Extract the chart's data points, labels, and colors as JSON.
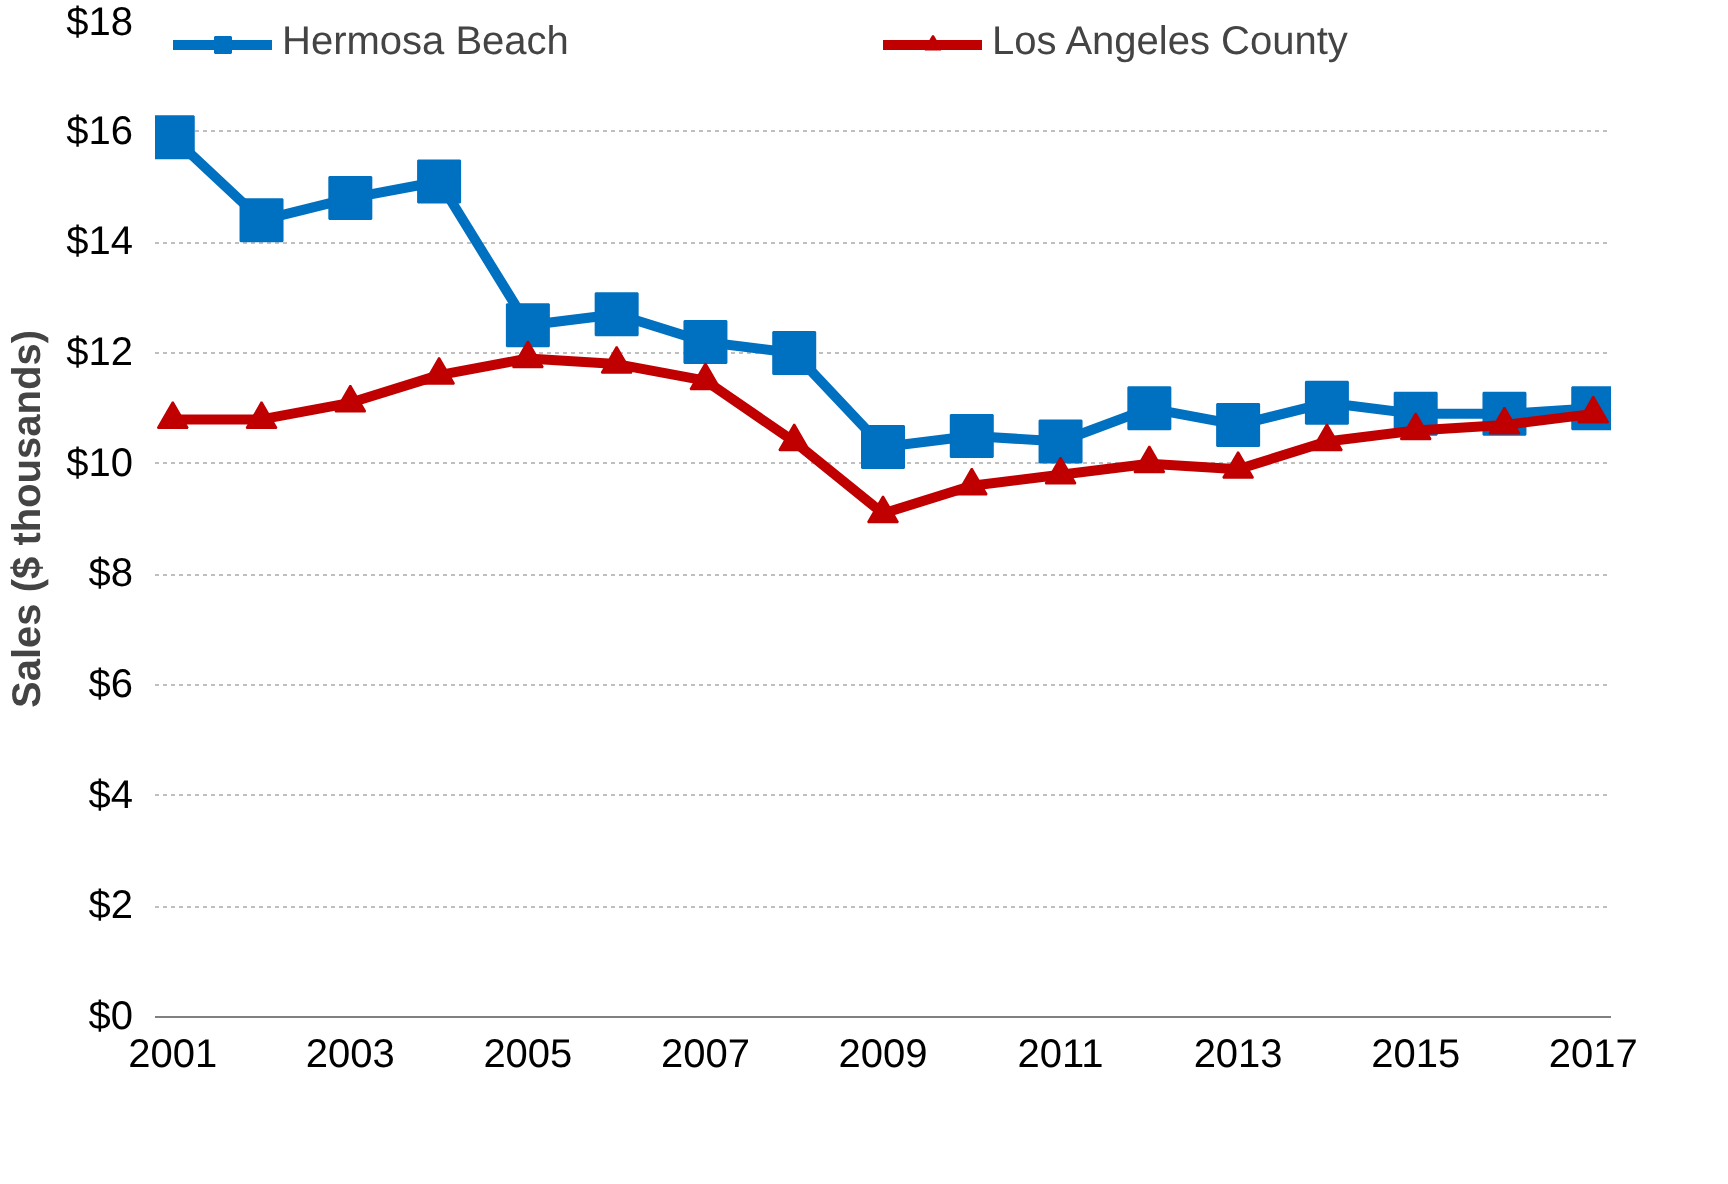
{
  "chart_data": {
    "type": "line",
    "ylabel": "Sales ($ thousands)",
    "x": [
      2001,
      2002,
      2003,
      2004,
      2005,
      2006,
      2007,
      2008,
      2009,
      2010,
      2011,
      2012,
      2013,
      2014,
      2015,
      2016,
      2017
    ],
    "series": [
      {
        "name": "Hermosa Beach",
        "color": "#0070c0",
        "marker": "square",
        "values": [
          15.9,
          14.4,
          14.8,
          15.1,
          12.5,
          12.7,
          12.2,
          12.0,
          10.3,
          10.5,
          10.4,
          11.0,
          10.7,
          11.1,
          10.9,
          10.9,
          11.0
        ]
      },
      {
        "name": "Los Angeles County",
        "color": "#c00000",
        "marker": "triangle",
        "values": [
          10.8,
          10.8,
          11.1,
          11.6,
          11.9,
          11.8,
          11.5,
          10.4,
          9.1,
          9.6,
          9.8,
          10.0,
          9.9,
          10.4,
          10.6,
          10.7,
          10.9
        ]
      }
    ],
    "xlim": [
      2000.8,
      2017.2
    ],
    "xticks": [
      2001,
      2003,
      2005,
      2007,
      2009,
      2011,
      2013,
      2015,
      2017
    ],
    "ylim": [
      0,
      18
    ],
    "yticks": [
      {
        "value": 0,
        "label": "$0"
      },
      {
        "value": 2,
        "label": "$2"
      },
      {
        "value": 4,
        "label": "$4"
      },
      {
        "value": 6,
        "label": "$6"
      },
      {
        "value": 8,
        "label": "$8"
      },
      {
        "value": 10,
        "label": "$10"
      },
      {
        "value": 12,
        "label": "$12"
      },
      {
        "value": 14,
        "label": "$14"
      },
      {
        "value": 16,
        "label": "$16"
      },
      {
        "value": 18,
        "label": "$18"
      }
    ],
    "grid": "y",
    "legend": "top",
    "line_style": "solid"
  }
}
